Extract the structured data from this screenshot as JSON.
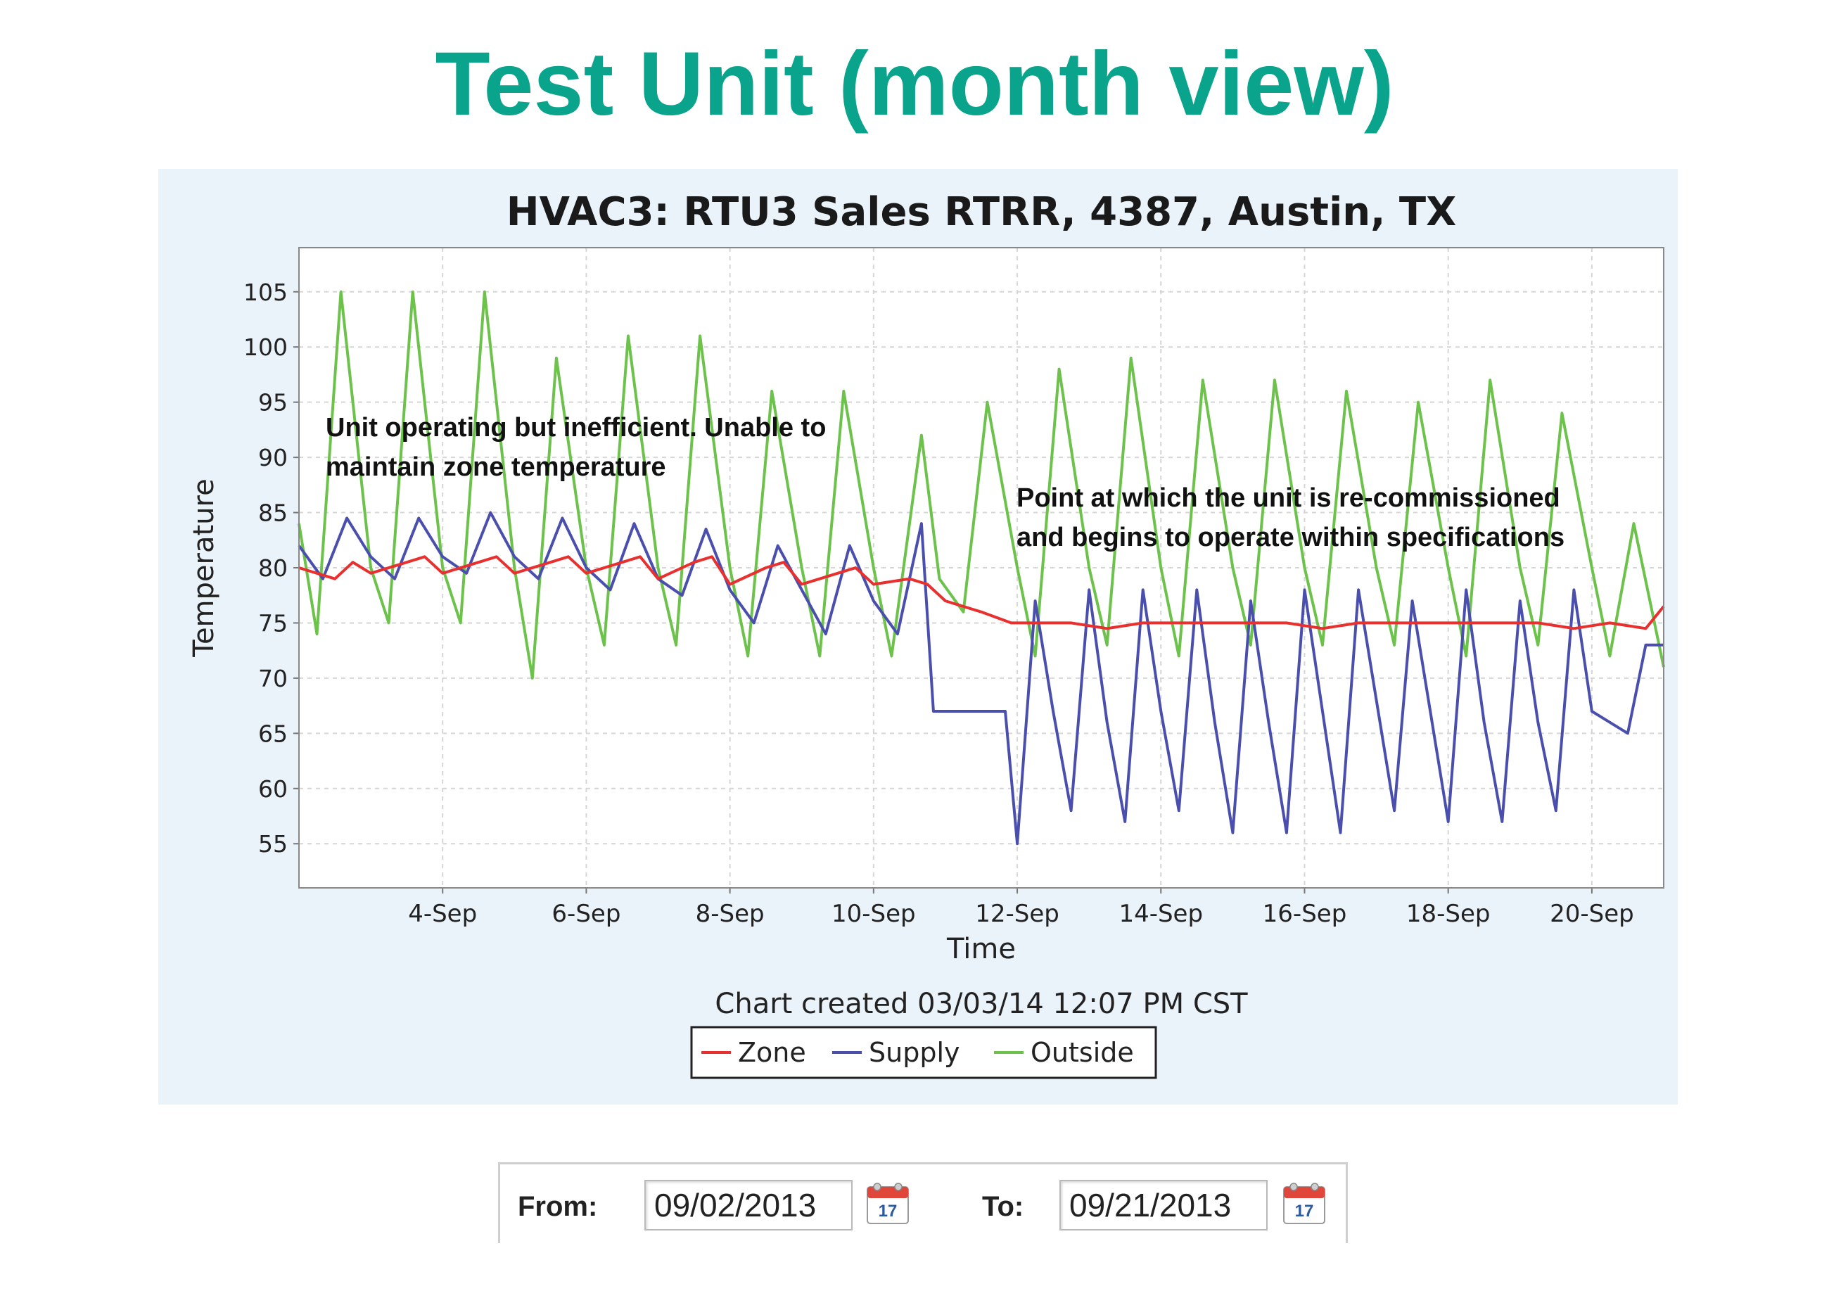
{
  "slide_title": "Test Unit (month view)",
  "chart_data": {
    "type": "line",
    "title": "HVAC3: RTU3 Sales RTRR, 4387, Austin, TX",
    "xlabel": "Time",
    "ylabel": "Temperature",
    "x_range": [
      "2013-09-02",
      "2013-09-21"
    ],
    "ylim": [
      51,
      109
    ],
    "x_ticks": [
      "4-Sep",
      "6-Sep",
      "8-Sep",
      "10-Sep",
      "12-Sep",
      "14-Sep",
      "16-Sep",
      "18-Sep",
      "20-Sep"
    ],
    "y_ticks": [
      55,
      60,
      65,
      70,
      75,
      80,
      85,
      90,
      95,
      100,
      105
    ],
    "grid": true,
    "footer": "Chart created 03/03/14 12:07 PM CST",
    "legend_position": "bottom",
    "series": [
      {
        "name": "Zone",
        "color": "#e8302f",
        "points": [
          [
            "2013-09-02 00:00",
            80
          ],
          [
            "2013-09-02 12:00",
            79
          ],
          [
            "2013-09-02 18:00",
            80.5
          ],
          [
            "2013-09-03 00:00",
            79.5
          ],
          [
            "2013-09-03 12:00",
            80.5
          ],
          [
            "2013-09-03 18:00",
            81
          ],
          [
            "2013-09-04 00:00",
            79.5
          ],
          [
            "2013-09-04 12:00",
            80.5
          ],
          [
            "2013-09-04 18:00",
            81
          ],
          [
            "2013-09-05 00:00",
            79.5
          ],
          [
            "2013-09-05 12:00",
            80.5
          ],
          [
            "2013-09-05 18:00",
            81
          ],
          [
            "2013-09-06 00:00",
            79.5
          ],
          [
            "2013-09-06 12:00",
            80.5
          ],
          [
            "2013-09-06 18:00",
            81
          ],
          [
            "2013-09-07 00:00",
            79
          ],
          [
            "2013-09-07 12:00",
            80.5
          ],
          [
            "2013-09-07 18:00",
            81
          ],
          [
            "2013-09-08 00:00",
            78.5
          ],
          [
            "2013-09-08 12:00",
            80
          ],
          [
            "2013-09-08 18:00",
            80.5
          ],
          [
            "2013-09-09 00:00",
            78.5
          ],
          [
            "2013-09-09 12:00",
            79.5
          ],
          [
            "2013-09-09 18:00",
            80
          ],
          [
            "2013-09-10 00:00",
            78.5
          ],
          [
            "2013-09-10 12:00",
            79
          ],
          [
            "2013-09-10 18:00",
            78.5
          ],
          [
            "2013-09-11 00:00",
            77
          ],
          [
            "2013-09-11 12:00",
            76
          ],
          [
            "2013-09-11 22:00",
            75
          ],
          [
            "2013-09-12 06:00",
            75
          ],
          [
            "2013-09-12 18:00",
            75
          ],
          [
            "2013-09-13 06:00",
            74.5
          ],
          [
            "2013-09-13 18:00",
            75
          ],
          [
            "2013-09-14 06:00",
            75
          ],
          [
            "2013-09-14 18:00",
            75
          ],
          [
            "2013-09-15 06:00",
            75
          ],
          [
            "2013-09-15 18:00",
            75
          ],
          [
            "2013-09-16 06:00",
            74.5
          ],
          [
            "2013-09-16 18:00",
            75
          ],
          [
            "2013-09-17 06:00",
            75
          ],
          [
            "2013-09-17 18:00",
            75
          ],
          [
            "2013-09-18 06:00",
            75
          ],
          [
            "2013-09-18 18:00",
            75
          ],
          [
            "2013-09-19 06:00",
            75
          ],
          [
            "2013-09-19 18:00",
            74.5
          ],
          [
            "2013-09-20 06:00",
            75
          ],
          [
            "2013-09-20 18:00",
            74.5
          ],
          [
            "2013-09-21 00:00",
            76.5
          ]
        ]
      },
      {
        "name": "Supply",
        "color": "#4a4fae",
        "points": [
          [
            "2013-09-02 00:00",
            82
          ],
          [
            "2013-09-02 08:00",
            79
          ],
          [
            "2013-09-02 16:00",
            84.5
          ],
          [
            "2013-09-03 00:00",
            81
          ],
          [
            "2013-09-03 08:00",
            79
          ],
          [
            "2013-09-03 16:00",
            84.5
          ],
          [
            "2013-09-04 00:00",
            81
          ],
          [
            "2013-09-04 08:00",
            79.5
          ],
          [
            "2013-09-04 16:00",
            85
          ],
          [
            "2013-09-05 00:00",
            81
          ],
          [
            "2013-09-05 08:00",
            79
          ],
          [
            "2013-09-05 16:00",
            84.5
          ],
          [
            "2013-09-06 00:00",
            80
          ],
          [
            "2013-09-06 08:00",
            78
          ],
          [
            "2013-09-06 16:00",
            84
          ],
          [
            "2013-09-07 00:00",
            79
          ],
          [
            "2013-09-07 08:00",
            77.5
          ],
          [
            "2013-09-07 16:00",
            83.5
          ],
          [
            "2013-09-08 00:00",
            78
          ],
          [
            "2013-09-08 08:00",
            75
          ],
          [
            "2013-09-08 16:00",
            82
          ],
          [
            "2013-09-09 00:00",
            78
          ],
          [
            "2013-09-09 08:00",
            74
          ],
          [
            "2013-09-09 16:00",
            82
          ],
          [
            "2013-09-10 00:00",
            77
          ],
          [
            "2013-09-10 08:00",
            74
          ],
          [
            "2013-09-10 16:00",
            84
          ],
          [
            "2013-09-10 20:00",
            67
          ],
          [
            "2013-09-11 12:00",
            67
          ],
          [
            "2013-09-11 20:00",
            67
          ],
          [
            "2013-09-12 00:00",
            55
          ],
          [
            "2013-09-12 06:00",
            77
          ],
          [
            "2013-09-12 12:00",
            67
          ],
          [
            "2013-09-12 18:00",
            58
          ],
          [
            "2013-09-13 00:00",
            78
          ],
          [
            "2013-09-13 06:00",
            66
          ],
          [
            "2013-09-13 12:00",
            57
          ],
          [
            "2013-09-13 18:00",
            78
          ],
          [
            "2013-09-14 00:00",
            67
          ],
          [
            "2013-09-14 06:00",
            58
          ],
          [
            "2013-09-14 12:00",
            78
          ],
          [
            "2013-09-14 18:00",
            66
          ],
          [
            "2013-09-15 00:00",
            56
          ],
          [
            "2013-09-15 06:00",
            77
          ],
          [
            "2013-09-15 12:00",
            66
          ],
          [
            "2013-09-15 18:00",
            56
          ],
          [
            "2013-09-16 00:00",
            78
          ],
          [
            "2013-09-16 06:00",
            67
          ],
          [
            "2013-09-16 12:00",
            56
          ],
          [
            "2013-09-16 18:00",
            78
          ],
          [
            "2013-09-17 00:00",
            68
          ],
          [
            "2013-09-17 06:00",
            58
          ],
          [
            "2013-09-17 12:00",
            77
          ],
          [
            "2013-09-17 18:00",
            67
          ],
          [
            "2013-09-18 00:00",
            57
          ],
          [
            "2013-09-18 06:00",
            78
          ],
          [
            "2013-09-18 12:00",
            66
          ],
          [
            "2013-09-18 18:00",
            57
          ],
          [
            "2013-09-19 00:00",
            77
          ],
          [
            "2013-09-19 06:00",
            66
          ],
          [
            "2013-09-19 12:00",
            58
          ],
          [
            "2013-09-19 18:00",
            78
          ],
          [
            "2013-09-20 00:00",
            67
          ],
          [
            "2013-09-20 06:00",
            66
          ],
          [
            "2013-09-20 12:00",
            65
          ],
          [
            "2013-09-20 18:00",
            73
          ],
          [
            "2013-09-21 00:00",
            73
          ]
        ]
      },
      {
        "name": "Outside",
        "color": "#6cc24a",
        "points": [
          [
            "2013-09-02 00:00",
            84
          ],
          [
            "2013-09-02 06:00",
            74
          ],
          [
            "2013-09-02 14:00",
            105
          ],
          [
            "2013-09-03 00:00",
            80
          ],
          [
            "2013-09-03 06:00",
            75
          ],
          [
            "2013-09-03 14:00",
            105
          ],
          [
            "2013-09-04 00:00",
            80
          ],
          [
            "2013-09-04 06:00",
            75
          ],
          [
            "2013-09-04 14:00",
            105
          ],
          [
            "2013-09-05 00:00",
            80
          ],
          [
            "2013-09-05 06:00",
            70
          ],
          [
            "2013-09-05 14:00",
            99
          ],
          [
            "2013-09-06 00:00",
            80
          ],
          [
            "2013-09-06 06:00",
            73
          ],
          [
            "2013-09-06 14:00",
            101
          ],
          [
            "2013-09-07 00:00",
            80
          ],
          [
            "2013-09-07 06:00",
            73
          ],
          [
            "2013-09-07 14:00",
            101
          ],
          [
            "2013-09-08 00:00",
            80
          ],
          [
            "2013-09-08 06:00",
            72
          ],
          [
            "2013-09-08 14:00",
            96
          ],
          [
            "2013-09-09 00:00",
            80
          ],
          [
            "2013-09-09 06:00",
            72
          ],
          [
            "2013-09-09 14:00",
            96
          ],
          [
            "2013-09-10 00:00",
            80
          ],
          [
            "2013-09-10 06:00",
            72
          ],
          [
            "2013-09-10 16:00",
            92
          ],
          [
            "2013-09-10 22:00",
            79
          ],
          [
            "2013-09-11 06:00",
            76
          ],
          [
            "2013-09-11 14:00",
            95
          ],
          [
            "2013-09-12 00:00",
            80
          ],
          [
            "2013-09-12 06:00",
            72
          ],
          [
            "2013-09-12 14:00",
            98
          ],
          [
            "2013-09-13 00:00",
            80
          ],
          [
            "2013-09-13 06:00",
            73
          ],
          [
            "2013-09-13 14:00",
            99
          ],
          [
            "2013-09-14 00:00",
            80
          ],
          [
            "2013-09-14 06:00",
            72
          ],
          [
            "2013-09-14 14:00",
            97
          ],
          [
            "2013-09-15 00:00",
            80
          ],
          [
            "2013-09-15 06:00",
            73
          ],
          [
            "2013-09-15 14:00",
            97
          ],
          [
            "2013-09-16 00:00",
            80
          ],
          [
            "2013-09-16 06:00",
            73
          ],
          [
            "2013-09-16 14:00",
            96
          ],
          [
            "2013-09-17 00:00",
            80
          ],
          [
            "2013-09-17 06:00",
            73
          ],
          [
            "2013-09-17 14:00",
            95
          ],
          [
            "2013-09-18 00:00",
            80
          ],
          [
            "2013-09-18 06:00",
            72
          ],
          [
            "2013-09-18 14:00",
            97
          ],
          [
            "2013-09-19 00:00",
            80
          ],
          [
            "2013-09-19 06:00",
            73
          ],
          [
            "2013-09-19 14:00",
            94
          ],
          [
            "2013-09-20 00:00",
            80
          ],
          [
            "2013-09-20 06:00",
            72
          ],
          [
            "2013-09-20 14:00",
            84
          ],
          [
            "2013-09-21 00:00",
            71
          ]
        ]
      }
    ],
    "annotations": [
      {
        "lines": [
          "Unit operating but inefficient.  Unable to",
          "maintain zone temperature"
        ]
      },
      {
        "lines": [
          "Point at which the unit is re-commissioned",
          "and begins to operate within specifications"
        ]
      }
    ]
  },
  "date_range": {
    "from_label": "From:",
    "from_value": "09/02/2013",
    "to_label": "To:",
    "to_value": "09/21/2013",
    "calendar_day": "17",
    "calendar_icon": "calendar-icon"
  }
}
